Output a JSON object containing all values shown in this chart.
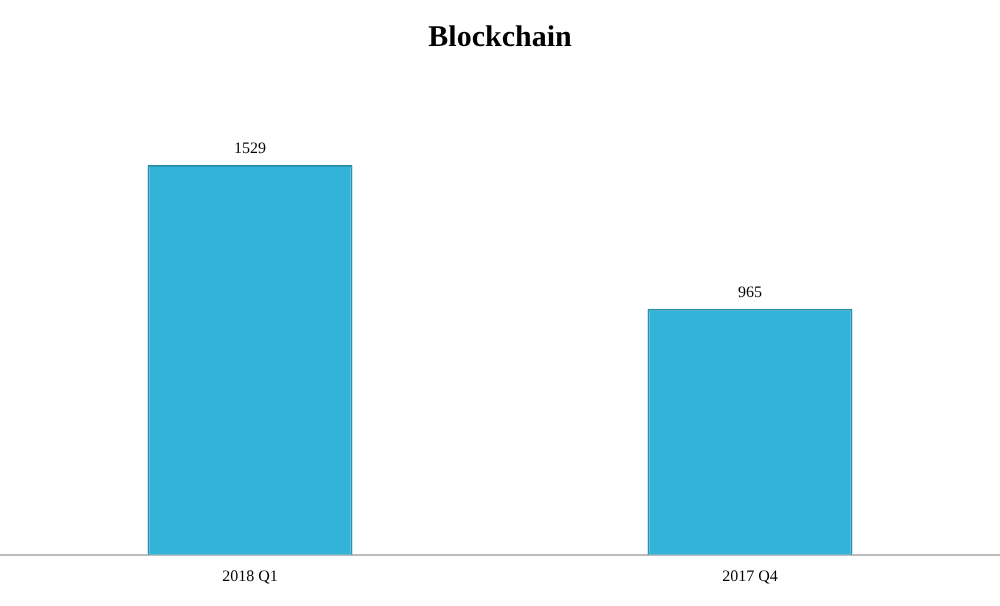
{
  "chart_data": {
    "type": "bar",
    "title": "Blockchain",
    "categories": [
      "2018 Q1",
      "2017 Q4"
    ],
    "values": [
      1529,
      965
    ],
    "color": "#33b3d8",
    "data_labels": true,
    "grid": false,
    "legend": false
  }
}
